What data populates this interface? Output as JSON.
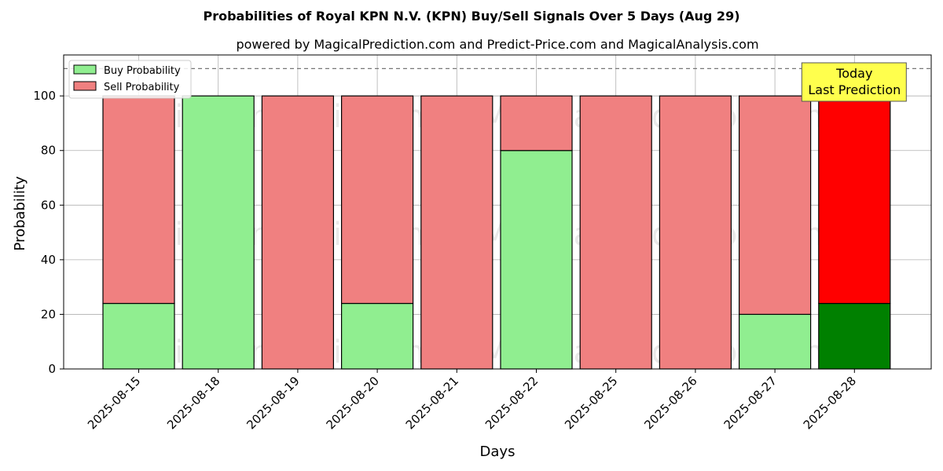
{
  "chart_data": {
    "type": "bar",
    "stacked": true,
    "title": "Probabilities of Royal KPN N.V. (KPN) Buy/Sell Signals Over 5 Days (Aug 29)",
    "subtitle": "powered by MagicalPrediction.com and Predict-Price.com and MagicalAnalysis.com",
    "xlabel": "Days",
    "ylabel": "Probability",
    "ylim": [
      0,
      115
    ],
    "yticks": [
      0,
      20,
      40,
      60,
      80,
      100
    ],
    "grid": true,
    "legend_placement": "top-left",
    "reference_line": {
      "y": 110,
      "style": "dashed"
    },
    "categories": [
      "2025-08-15",
      "2025-08-18",
      "2025-08-19",
      "2025-08-20",
      "2025-08-21",
      "2025-08-22",
      "2025-08-25",
      "2025-08-26",
      "2025-08-27",
      "2025-08-28"
    ],
    "series": [
      {
        "name": "Buy Probability",
        "color": "#90ee90",
        "highlight_color": "#008000",
        "values": [
          24,
          100,
          0,
          24,
          0,
          80,
          0,
          0,
          20,
          24
        ]
      },
      {
        "name": "Sell Probability",
        "color": "#f08080",
        "highlight_color": "#ff0000",
        "values": [
          76,
          0,
          100,
          76,
          100,
          20,
          100,
          100,
          80,
          76
        ]
      }
    ],
    "highlight_index": 9,
    "annotation": {
      "lines": [
        "Today",
        "Last Prediction"
      ],
      "color": "#ffff4d"
    },
    "watermarks": [
      "MagicalAnalysis.com",
      "MagicalPrediction.com"
    ]
  }
}
